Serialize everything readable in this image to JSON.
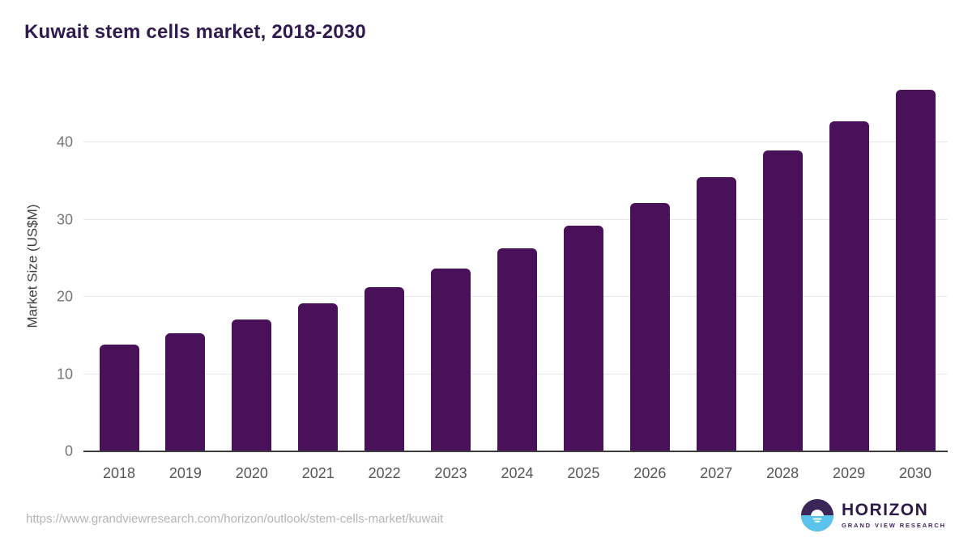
{
  "header": {
    "title": "Kuwait stem cells market, 2018-2030"
  },
  "chart_data": {
    "type": "bar",
    "title": "Kuwait stem cells market, 2018-2030",
    "categories": [
      "2018",
      "2019",
      "2020",
      "2021",
      "2022",
      "2023",
      "2024",
      "2025",
      "2026",
      "2027",
      "2028",
      "2029",
      "2030"
    ],
    "values": [
      13.8,
      15.3,
      17.1,
      19.2,
      21.3,
      23.7,
      26.3,
      29.2,
      32.2,
      35.5,
      39.0,
      42.8,
      46.9
    ],
    "xlabel": "",
    "ylabel": "Market Size (US$M)",
    "yticks": [
      0,
      10,
      20,
      30,
      40
    ],
    "ylim": [
      0,
      48
    ],
    "grid": true,
    "legend_position": "none",
    "bar_color": "#48115a",
    "gridline_color": "#e7e7e7",
    "axis_line_color": "#3d3d3d",
    "tick_label_color": "#767676"
  },
  "footer": {
    "source_url": "https://www.grandviewresearch.com/horizon/outlook/stem-cells-market/kuwait",
    "logo": {
      "title": "HORIZON",
      "subtitle": "GRAND VIEW RESEARCH",
      "icon": "sun-over-horizon-icon",
      "purple": "#3b2657",
      "blue": "#59c3ec"
    }
  }
}
